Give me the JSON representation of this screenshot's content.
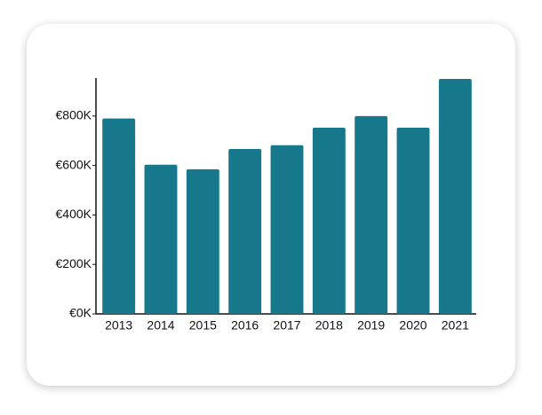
{
  "chart_data": {
    "type": "bar",
    "categories": [
      "2013",
      "2014",
      "2015",
      "2016",
      "2017",
      "2018",
      "2019",
      "2020",
      "2021"
    ],
    "values": [
      790000,
      603000,
      585000,
      667000,
      682000,
      753000,
      800000,
      753000,
      950000
    ],
    "color": "#16788a",
    "ylim": [
      0,
      950000
    ],
    "yticks": [
      {
        "value": 0,
        "label": "€0K"
      },
      {
        "value": 200000,
        "label": "€200K"
      },
      {
        "value": 400000,
        "label": "€400K"
      },
      {
        "value": 600000,
        "label": "€600K"
      },
      {
        "value": 800000,
        "label": "€800K"
      }
    ],
    "grid": false
  }
}
